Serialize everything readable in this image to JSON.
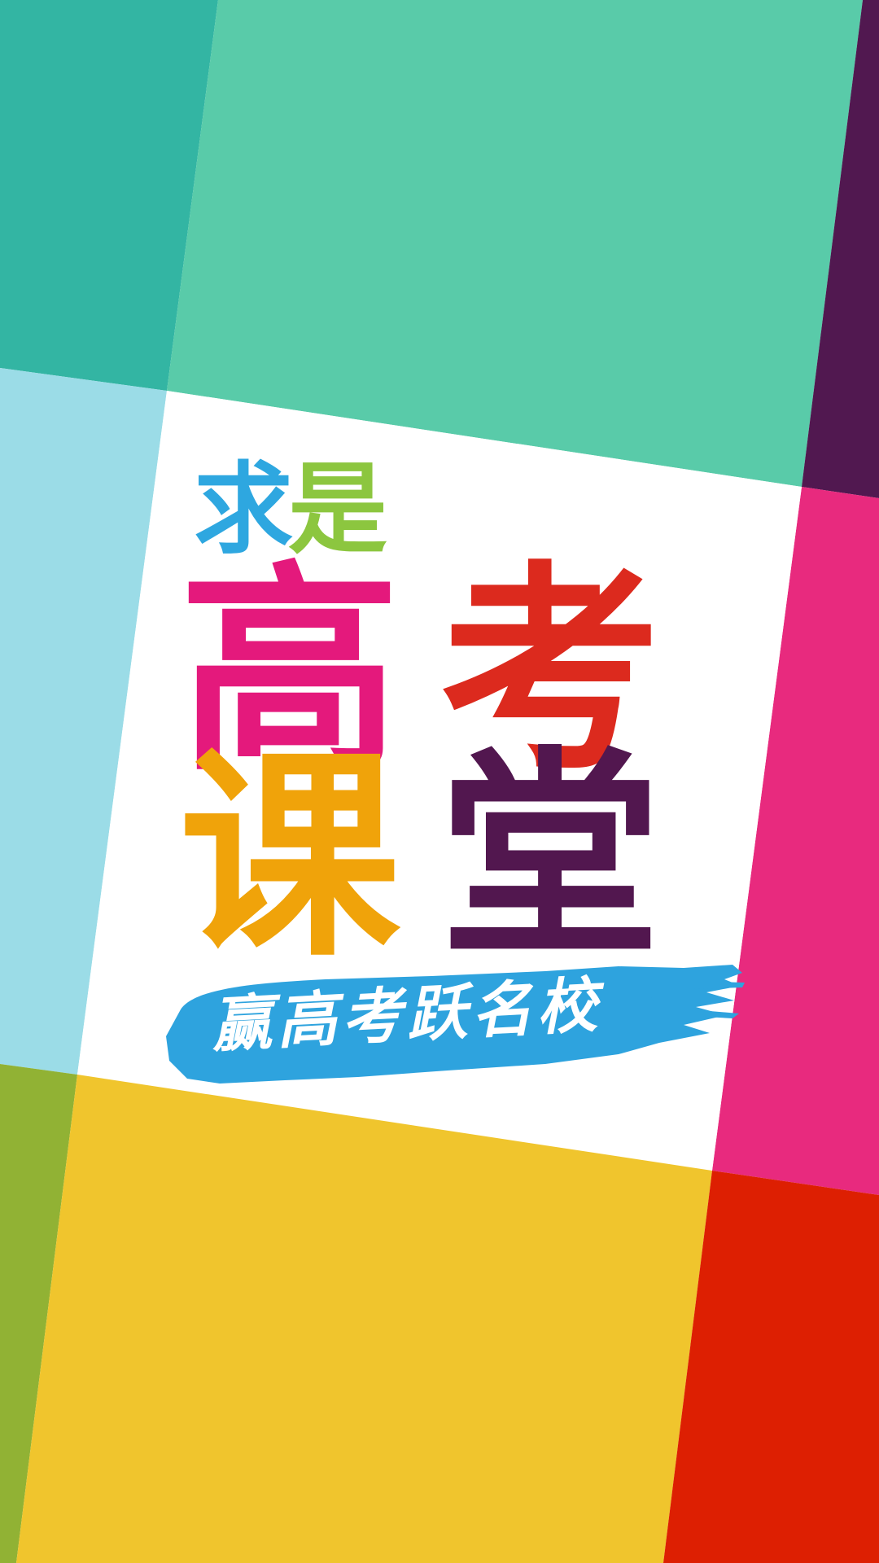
{
  "brand": {
    "qiu_char": "求",
    "shi_char": "是",
    "qiu_color": "#2ea7e0",
    "shi_color": "#8cc63f"
  },
  "title": {
    "gao_char": "高",
    "kao_char": "考",
    "ke_char": "课",
    "tang_char": "堂",
    "gao_color": "#e4197c",
    "kao_color": "#dc2a1e",
    "ke_color": "#f0a30a",
    "tang_color": "#52174f"
  },
  "slogan": {
    "text": "赢高考跃名校",
    "brush_color": "#2ea3de",
    "text_color": "#ffffff"
  },
  "colors": {
    "teal_dark": "#33b5a3",
    "teal_light": "#59cba9",
    "purple": "#511850",
    "sky_blue": "#9bdce7",
    "pink": "#e82a7e",
    "olive_green": "#91b234",
    "yellow": "#f0c52d",
    "red": "#dd1f02",
    "center_white": "#ffffff"
  }
}
